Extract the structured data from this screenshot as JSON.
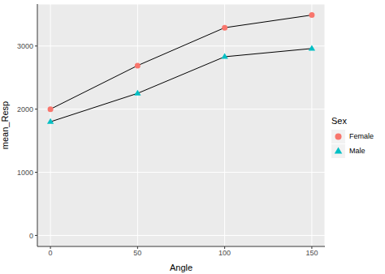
{
  "chart_data": {
    "type": "line",
    "x_label": "Angle",
    "y_label": "mean_Resp",
    "legend_title": "Sex",
    "x": [
      0,
      50,
      100,
      150
    ],
    "series": [
      {
        "name": "Female",
        "color": "#F8766D",
        "marker": "circle",
        "values": [
          2000,
          2690,
          3290,
          3490
        ]
      },
      {
        "name": "Male",
        "color": "#00BFC4",
        "marker": "triangle",
        "values": [
          1800,
          2250,
          2830,
          2960
        ]
      }
    ],
    "xlim": [
      -7.5,
      157.5
    ],
    "xticks": [
      0,
      50,
      100,
      150
    ],
    "ylim": [
      -174.5,
      3664.5
    ],
    "yticks": [
      0,
      1000,
      2000,
      3000
    ],
    "grid": true,
    "legend": "right"
  }
}
